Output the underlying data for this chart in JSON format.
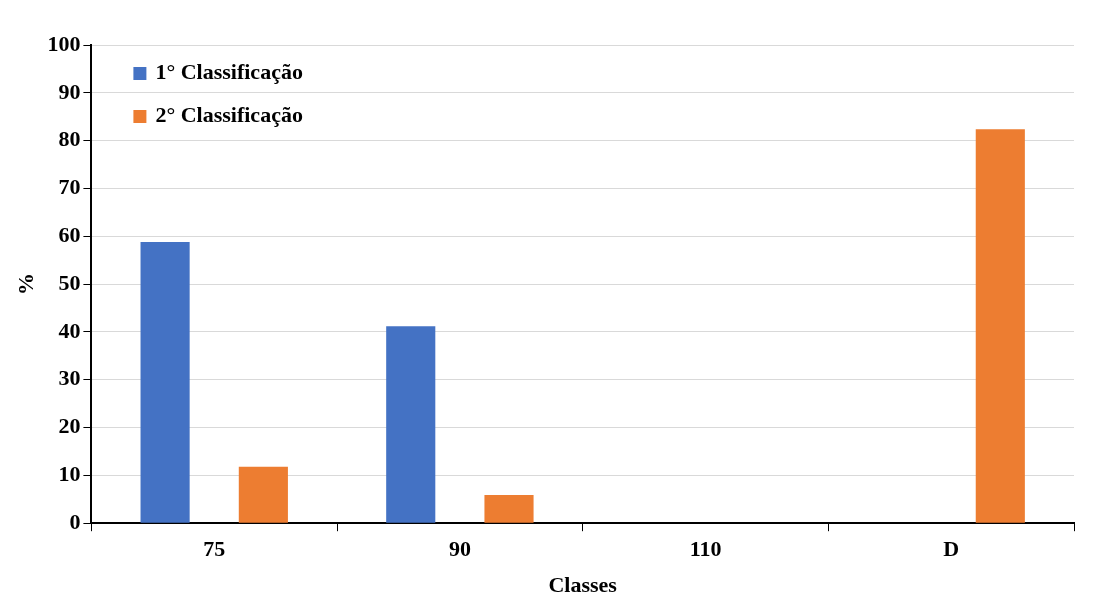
{
  "chart_data": {
    "type": "bar",
    "xlabel": "Classes",
    "ylabel": "%",
    "categories": [
      "75",
      "90",
      "110",
      "D"
    ],
    "series": [
      {
        "name": "1° Classificação",
        "color": "#4472c4",
        "values": [
          58.8,
          41.2,
          0,
          0
        ]
      },
      {
        "name": "2° Classificação",
        "color": "#ed7d31",
        "values": [
          11.8,
          5.9,
          0,
          82.4
        ]
      }
    ],
    "ylim": [
      0,
      100
    ],
    "yticks": [
      0,
      10,
      20,
      30,
      40,
      50,
      60,
      70,
      80,
      90,
      100
    ],
    "grid": "y",
    "legend": "top left"
  }
}
